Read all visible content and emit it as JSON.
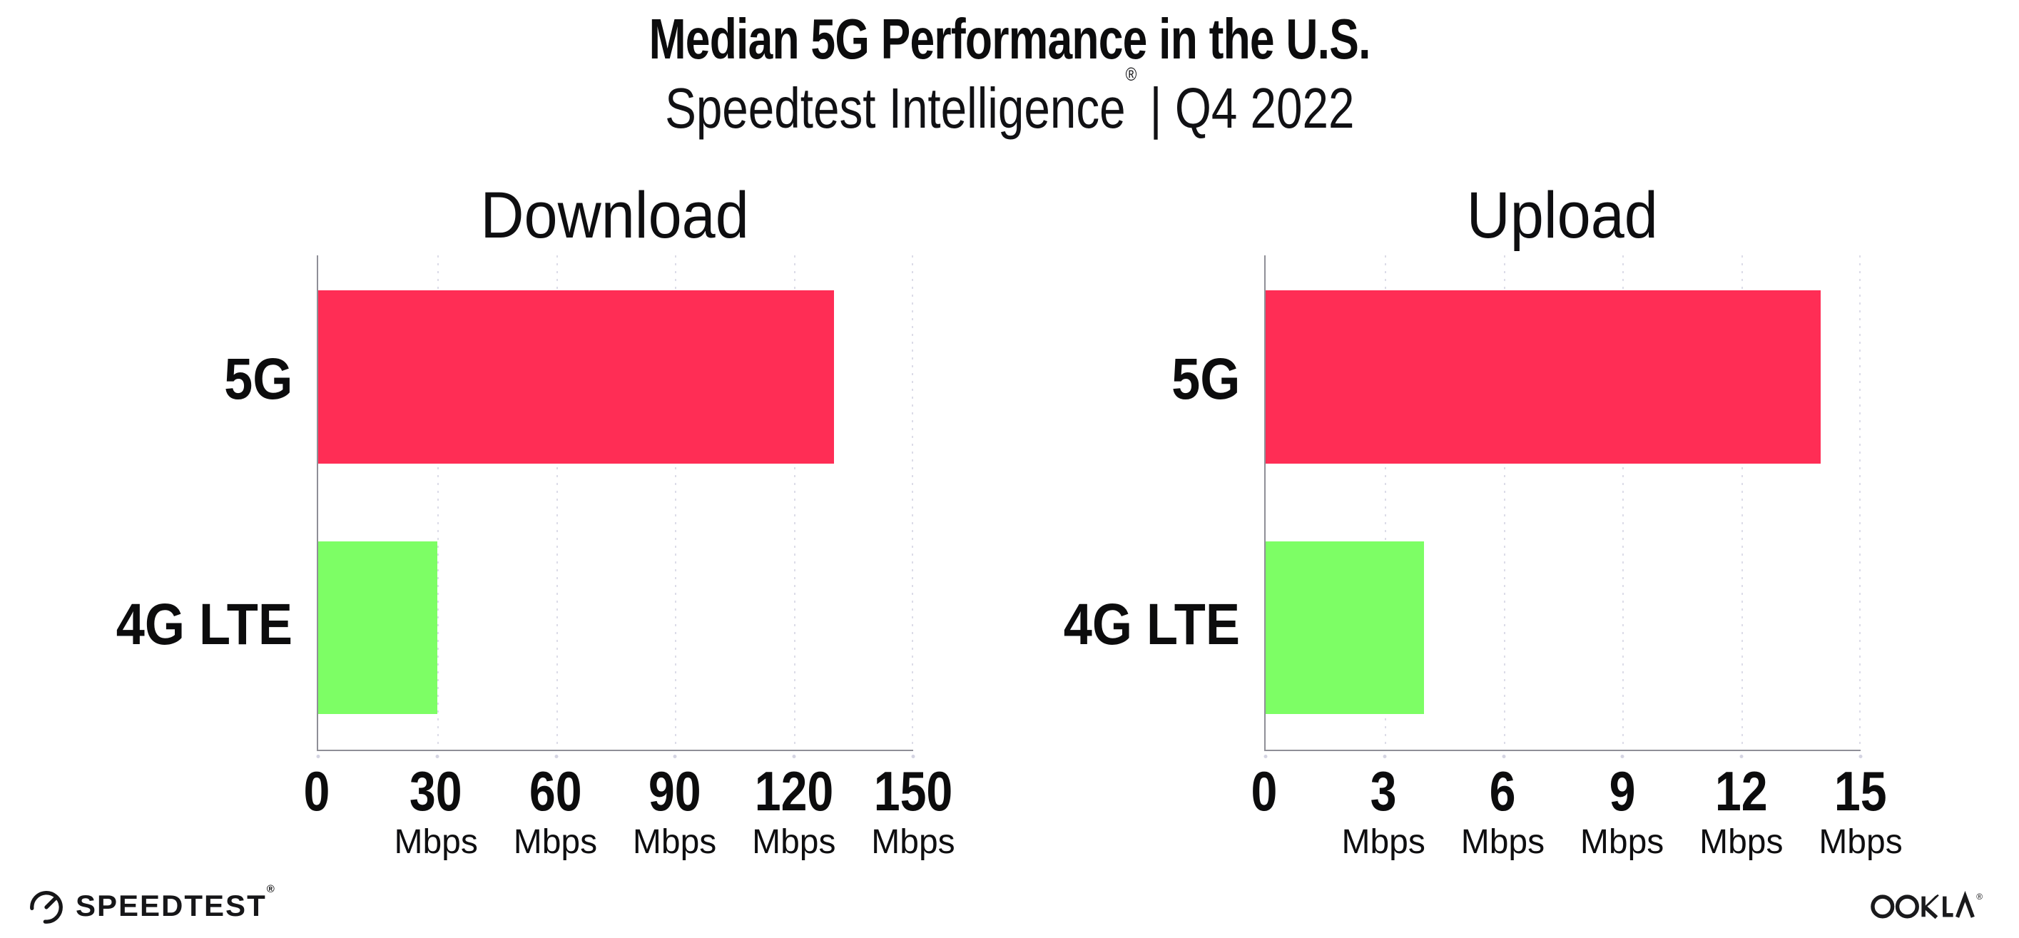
{
  "header": {
    "title": "Median 5G Performance in the U.S.",
    "subtitle_brand": "Speedtest Intelligence",
    "subtitle_reg": "®",
    "subtitle_rest": " | Q4 2022"
  },
  "chart_data": [
    {
      "type": "bar",
      "orientation": "horizontal",
      "title": "Download",
      "categories": [
        "5G",
        "4G LTE"
      ],
      "values": [
        130,
        30
      ],
      "unit": "Mbps",
      "xlim": [
        0,
        150
      ],
      "xticks": [
        "0",
        "30",
        "60",
        "90",
        "120",
        "150"
      ],
      "tick_unit": "Mbps",
      "bar_colors": [
        "#FF2D55",
        "#7DFE65"
      ],
      "grid": "vertical-dotted",
      "legend": "none"
    },
    {
      "type": "bar",
      "orientation": "horizontal",
      "title": "Upload",
      "categories": [
        "5G",
        "4G LTE"
      ],
      "values": [
        14,
        4
      ],
      "unit": "Mbps",
      "xlim": [
        0,
        15
      ],
      "xticks": [
        "0",
        "3",
        "6",
        "9",
        "12",
        "15"
      ],
      "tick_unit": "Mbps",
      "bar_colors": [
        "#FF2D55",
        "#7DFE65"
      ],
      "grid": "vertical-dotted",
      "legend": "none"
    }
  ],
  "footer": {
    "speedtest_label": "SPEEDTEST",
    "speedtest_reg": "®",
    "ookla_label": "OOKLA",
    "ookla_reg": "®"
  },
  "colors": {
    "bar_5g": "#FF2D55",
    "bar_4g_lte": "#7DFE65",
    "axis": "#8f8f97",
    "gridline": "#dcdce8",
    "text": "#0c0c0d"
  }
}
